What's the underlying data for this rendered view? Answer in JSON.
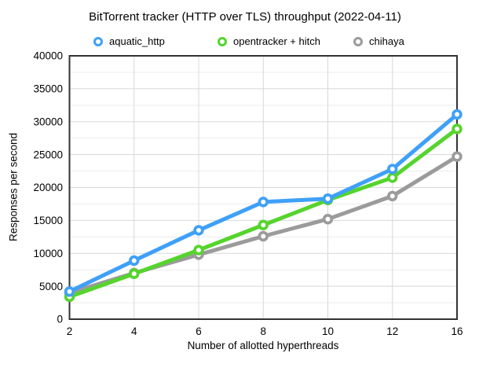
{
  "chart": {
    "title": "BitTorrent tracker (HTTP over TLS) throughput (2022-04-11)",
    "xlabel": "Number of allotted hyperthreads",
    "ylabel": "Responses per second"
  },
  "legend": {
    "items": [
      {
        "label": "aquatic_http",
        "color": "#3fa0f8"
      },
      {
        "label": "opentracker + hitch",
        "color": "#55d42d"
      },
      {
        "label": "chihaya",
        "color": "#9b9b9b"
      }
    ]
  },
  "chart_data": {
    "type": "line",
    "title": "BitTorrent tracker (HTTP over TLS) throughput (2022-04-11)",
    "xlabel": "Number of allotted hyperthreads",
    "ylabel": "Responses per second",
    "categories": [
      2,
      4,
      6,
      8,
      10,
      12,
      16
    ],
    "series": [
      {
        "name": "aquatic_http",
        "color": "#3fa0f8",
        "values": [
          4200,
          8900,
          13500,
          17800,
          18300,
          22800,
          31100
        ]
      },
      {
        "name": "opentracker + hitch",
        "color": "#55d42d",
        "values": [
          3400,
          6900,
          10500,
          14300,
          18100,
          21500,
          28900
        ]
      },
      {
        "name": "chihaya",
        "color": "#9b9b9b",
        "values": [
          4000,
          7000,
          9800,
          12600,
          15200,
          18700,
          24700
        ]
      }
    ],
    "ylim": [
      0,
      40000
    ],
    "y_tick_step": 5000,
    "y_minor_step": 2500,
    "y_tick_labels": [
      "0",
      "5000",
      "10000",
      "15000",
      "20000",
      "25000",
      "30000",
      "35000",
      "40000"
    ],
    "x_tick_labels": [
      "2",
      "4",
      "6",
      "8",
      "10",
      "12",
      "16"
    ],
    "grid": true,
    "legend_position": "top"
  }
}
